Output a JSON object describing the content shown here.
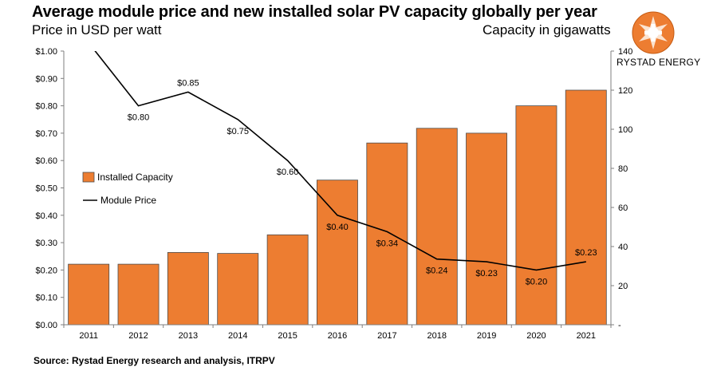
{
  "header": {
    "title": "Average module price and new installed solar PV capacity globally per year",
    "subtitle_left": "Price in USD per watt",
    "subtitle_right": "Capacity in gigawatts"
  },
  "brand": {
    "name": "RYSTAD ENERGY",
    "logo_icon": "rystad-energy-logo-icon"
  },
  "source": "Source: Rystad Energy research and analysis, ITRPV",
  "colors": {
    "bar": "#ED7D31",
    "bar_stroke": "#4d4d4d",
    "line": "#000000",
    "axis": "#7f7f7f"
  },
  "chart_data": {
    "type": "bar",
    "categories": [
      "2011",
      "2012",
      "2013",
      "2014",
      "2015",
      "2016",
      "2017",
      "2018",
      "2019",
      "2020",
      "2021"
    ],
    "series": [
      {
        "name": "Installed Capacity",
        "type": "bar",
        "axis": "right",
        "values": [
          31,
          31,
          37,
          36.5,
          46,
          74,
          93,
          100.5,
          98,
          112,
          120
        ]
      },
      {
        "name": "Module Price",
        "type": "line",
        "axis": "left",
        "values": [
          1.03,
          0.8,
          0.85,
          0.75,
          0.6,
          0.4,
          0.34,
          0.24,
          0.23,
          0.2,
          0.23
        ],
        "data_labels": [
          "",
          "$0.80",
          "$0.85",
          "$0.75",
          "$0.60",
          "$0.40",
          "$0.34",
          "$0.24",
          "$0.23",
          "$0.20",
          "$0.23"
        ]
      }
    ],
    "y_left": {
      "label": "Price in USD per watt",
      "ylim": [
        0,
        1.0
      ],
      "ticks": [
        "$0.00",
        "$0.10",
        "$0.20",
        "$0.30",
        "$0.40",
        "$0.50",
        "$0.60",
        "$0.70",
        "$0.80",
        "$0.90",
        "$1.00"
      ]
    },
    "y_right": {
      "label": "Capacity in gigawatts",
      "ylim": [
        0,
        140
      ],
      "ticks": [
        "-",
        "20",
        "40",
        "60",
        "80",
        "100",
        "120",
        "140"
      ]
    },
    "grid": false,
    "legend": {
      "placement": "middle-left",
      "entries": [
        "Installed Capacity",
        "Module Price"
      ]
    }
  }
}
